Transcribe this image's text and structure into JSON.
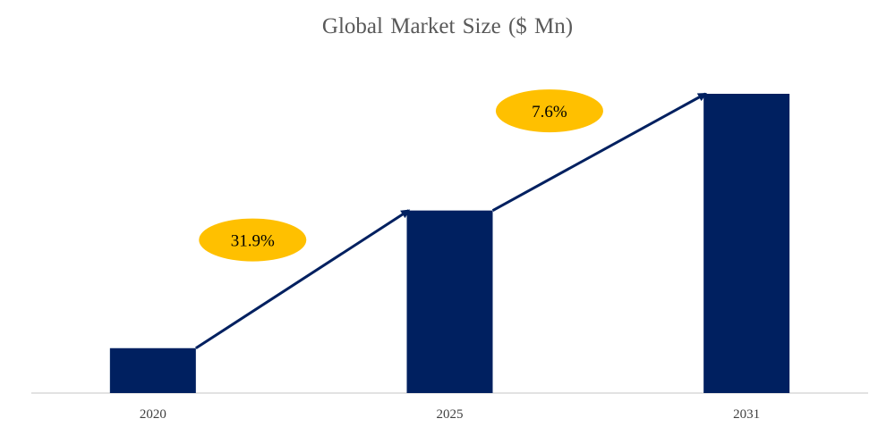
{
  "chart_data": {
    "type": "bar",
    "title": "Global Market Size ($ Mn)",
    "xlabel": "",
    "ylabel": "",
    "categories": [
      "2020",
      "2025",
      "2031"
    ],
    "values": [
      15,
      61,
      100
    ],
    "value_unit": "relative (axis unlabeled)",
    "ylim": [
      0,
      100
    ],
    "grid": false,
    "legend": "none",
    "colors": {
      "bar": "#002060",
      "arrow": "#002060",
      "bubble": "#FFC000",
      "baseline": "#D9D9D9"
    },
    "annotations": [
      {
        "from": "2020",
        "to": "2025",
        "label": "31.9%"
      },
      {
        "from": "2025",
        "to": "2031",
        "label": "7.6%"
      }
    ]
  }
}
